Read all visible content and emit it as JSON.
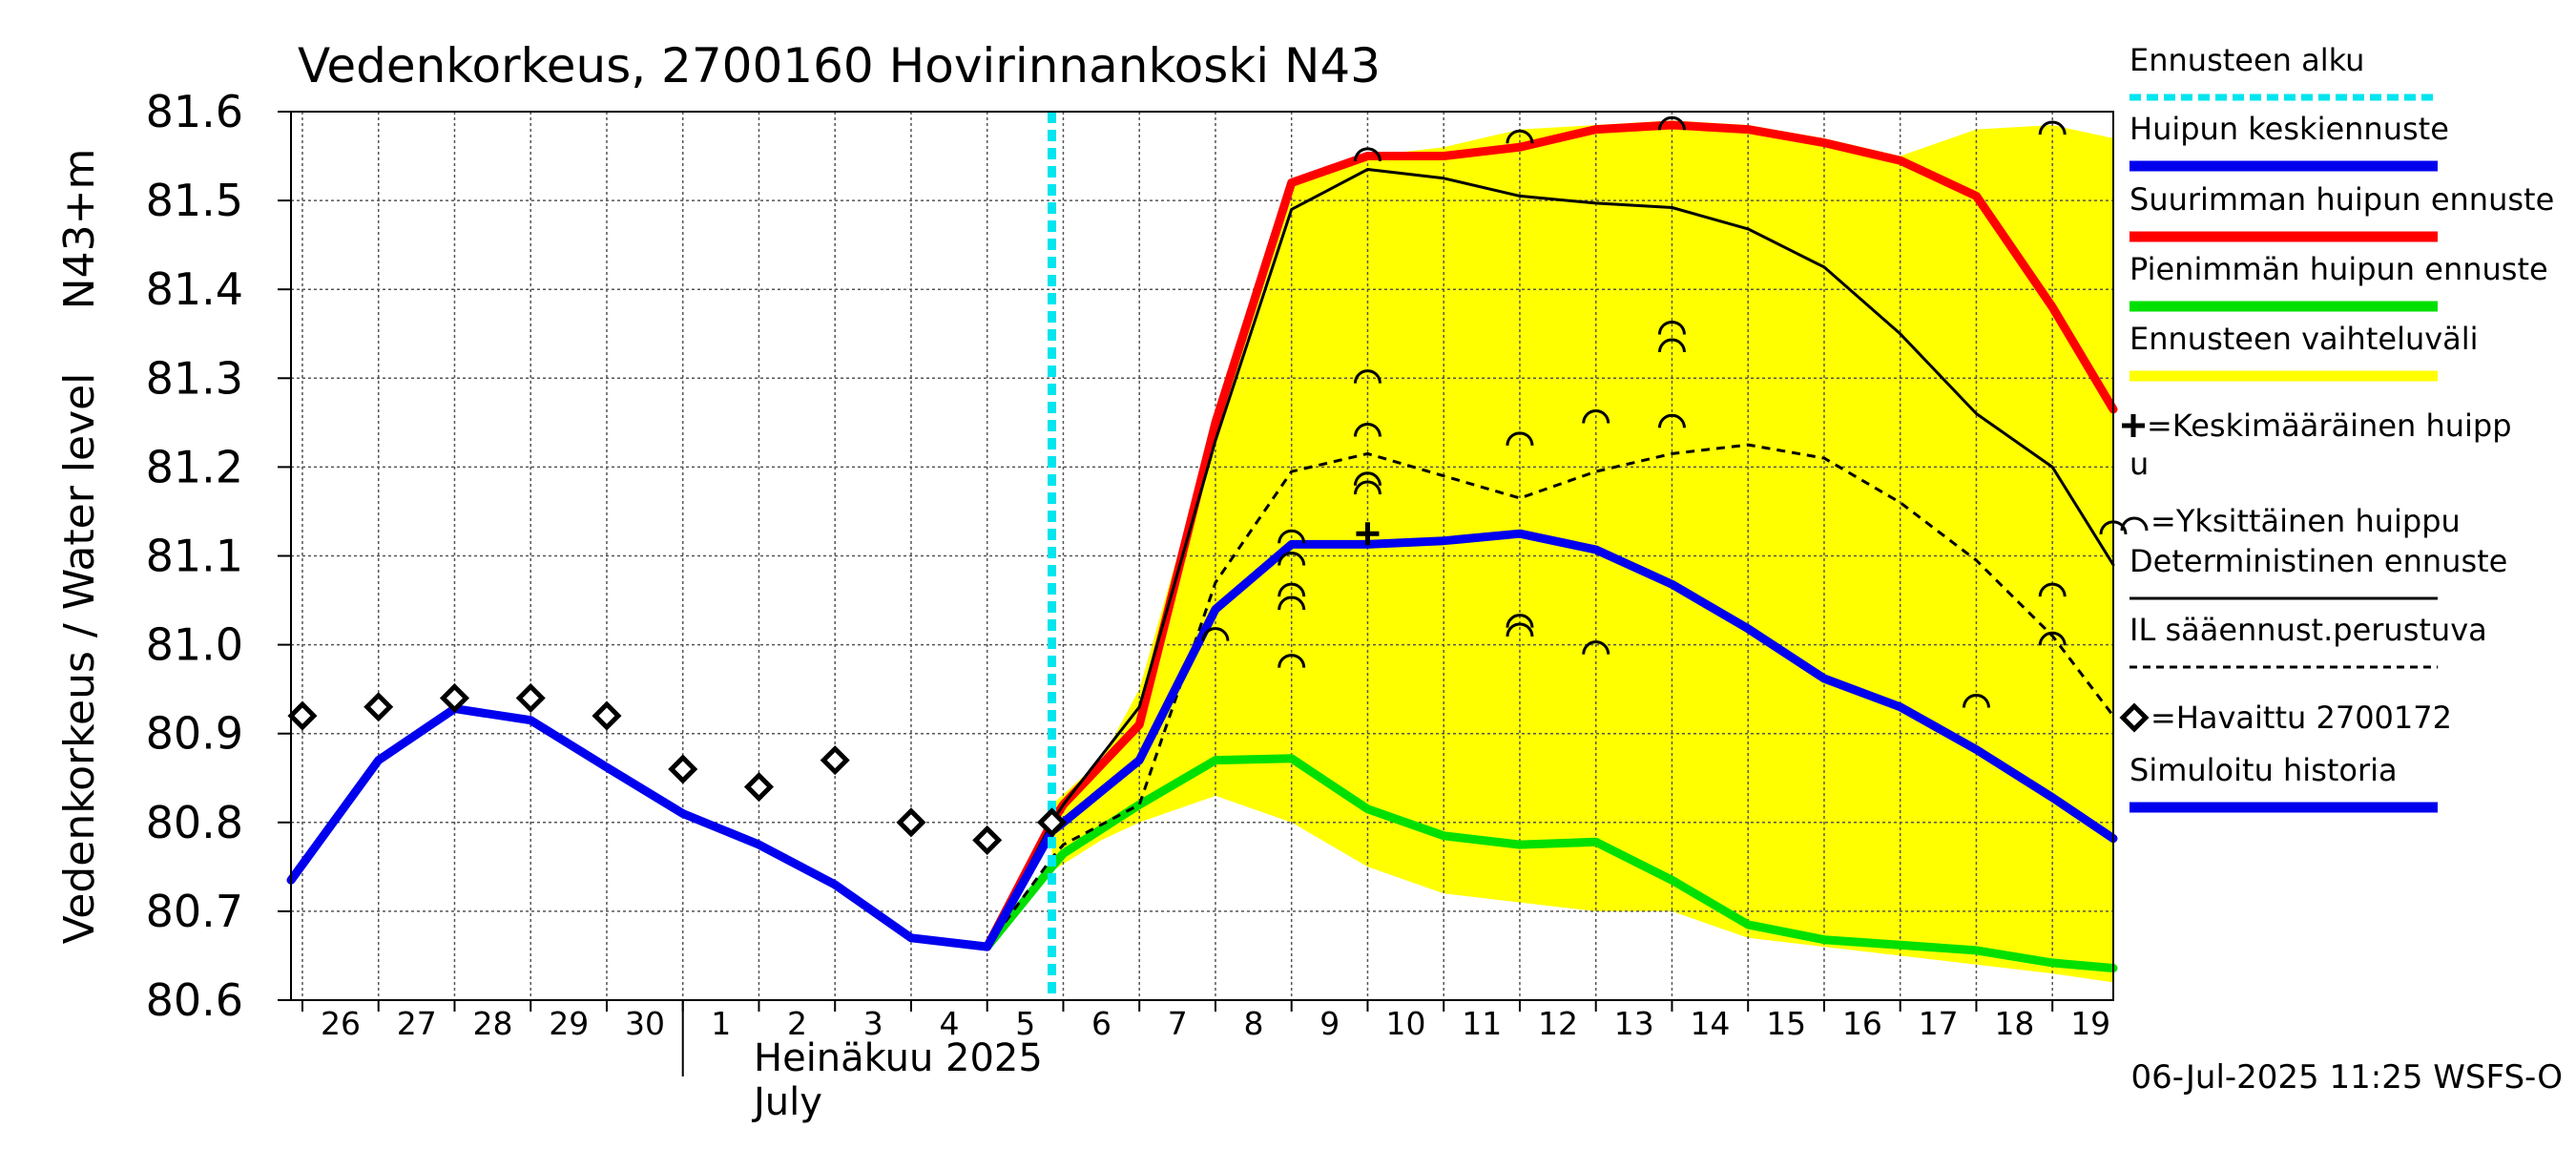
{
  "chart_data": {
    "type": "line",
    "title": "Vedenkorkeus, 2700160 Hovirinnankoski N43",
    "ylabel_outer": "Vedenkorkeus / Water level",
    "ylabel_inner": "N43+m",
    "ylim": [
      80.6,
      81.6
    ],
    "yticks": [
      "80.6",
      "80.7",
      "80.8",
      "80.9",
      "81.0",
      "81.1",
      "81.2",
      "81.3",
      "81.4",
      "81.5",
      "81.6"
    ],
    "xlim": [
      -0.15,
      23.8
    ],
    "x_day_labels": [
      {
        "x": 0.0,
        "label": "26"
      },
      {
        "x": 1.0,
        "label": "27"
      },
      {
        "x": 2.0,
        "label": "28"
      },
      {
        "x": 3.0,
        "label": "29"
      },
      {
        "x": 4.0,
        "label": "30"
      },
      {
        "x": 5.0,
        "label": "1"
      },
      {
        "x": 6.0,
        "label": "2"
      },
      {
        "x": 7.0,
        "label": "3"
      },
      {
        "x": 8.0,
        "label": "4"
      },
      {
        "x": 9.0,
        "label": "5"
      },
      {
        "x": 10.0,
        "label": "6"
      },
      {
        "x": 11.0,
        "label": "7"
      },
      {
        "x": 12.0,
        "label": "8"
      },
      {
        "x": 13.0,
        "label": "9"
      },
      {
        "x": 14.0,
        "label": "10"
      },
      {
        "x": 15.0,
        "label": "11"
      },
      {
        "x": 16.0,
        "label": "12"
      },
      {
        "x": 17.0,
        "label": "13"
      },
      {
        "x": 18.0,
        "label": "14"
      },
      {
        "x": 19.0,
        "label": "15"
      },
      {
        "x": 20.0,
        "label": "16"
      },
      {
        "x": 21.0,
        "label": "17"
      },
      {
        "x": 22.0,
        "label": "18"
      },
      {
        "x": 23.0,
        "label": "19"
      }
    ],
    "month_label_fi": "Heinäkuu  2025",
    "month_label_en": "July",
    "forecast_start_x": 9.85,
    "series": [
      {
        "name": "Ennusteen vaihteluväli",
        "kind": "band",
        "color": "#ffff00",
        "upper": [
          [
            9.85,
            80.82
          ],
          [
            10.5,
            80.87
          ],
          [
            11.0,
            80.95
          ],
          [
            11.5,
            81.1
          ],
          [
            12.0,
            81.25
          ],
          [
            13.0,
            81.52
          ],
          [
            14.0,
            81.55
          ],
          [
            15.0,
            81.56
          ],
          [
            16.0,
            81.58
          ],
          [
            17.0,
            81.585
          ],
          [
            18.0,
            81.59
          ],
          [
            19.0,
            81.585
          ],
          [
            20.0,
            81.57
          ],
          [
            21.0,
            81.55
          ],
          [
            22.0,
            81.58
          ],
          [
            23.0,
            81.585
          ],
          [
            23.8,
            81.57
          ]
        ],
        "lower": [
          [
            23.8,
            80.62
          ],
          [
            23.0,
            80.63
          ],
          [
            22.0,
            80.64
          ],
          [
            21.0,
            80.65
          ],
          [
            20.0,
            80.66
          ],
          [
            19.0,
            80.67
          ],
          [
            18.0,
            80.7
          ],
          [
            17.0,
            80.7
          ],
          [
            16.0,
            80.71
          ],
          [
            15.0,
            80.72
          ],
          [
            14.0,
            80.75
          ],
          [
            13.0,
            80.8
          ],
          [
            12.0,
            80.83
          ],
          [
            11.0,
            80.8
          ],
          [
            10.5,
            80.78
          ],
          [
            9.85,
            80.745
          ]
        ]
      },
      {
        "name": "Suurimman huipun ennuste",
        "kind": "line",
        "color": "#ff0000",
        "width": 9,
        "points": [
          [
            9.0,
            80.66
          ],
          [
            9.85,
            80.8
          ],
          [
            10.0,
            80.82
          ],
          [
            11.0,
            80.91
          ],
          [
            12.0,
            81.25
          ],
          [
            13.0,
            81.52
          ],
          [
            14.0,
            81.55
          ],
          [
            15.0,
            81.55
          ],
          [
            16.0,
            81.56
          ],
          [
            17.0,
            81.58
          ],
          [
            18.0,
            81.585
          ],
          [
            19.0,
            81.58
          ],
          [
            20.0,
            81.565
          ],
          [
            21.0,
            81.545
          ],
          [
            22.0,
            81.505
          ],
          [
            23.0,
            81.38
          ],
          [
            23.8,
            81.265
          ]
        ]
      },
      {
        "name": "Pienimmän huipun ennuste",
        "kind": "line",
        "color": "#00e000",
        "width": 9,
        "points": [
          [
            9.0,
            80.66
          ],
          [
            9.85,
            80.75
          ],
          [
            10.0,
            80.765
          ],
          [
            11.0,
            80.82
          ],
          [
            12.0,
            80.87
          ],
          [
            13.0,
            80.872
          ],
          [
            14.0,
            80.815
          ],
          [
            15.0,
            80.785
          ],
          [
            16.0,
            80.775
          ],
          [
            17.0,
            80.778
          ],
          [
            18.0,
            80.735
          ],
          [
            19.0,
            80.685
          ],
          [
            20.0,
            80.668
          ],
          [
            21.0,
            80.662
          ],
          [
            22.0,
            80.656
          ],
          [
            23.0,
            80.642
          ],
          [
            23.8,
            80.636
          ]
        ]
      },
      {
        "name": "Deterministinen ennuste",
        "kind": "line",
        "color": "#000000",
        "width": 3,
        "points": [
          [
            9.0,
            80.66
          ],
          [
            9.85,
            80.8
          ],
          [
            10.0,
            80.82
          ],
          [
            11.0,
            80.93
          ],
          [
            12.0,
            81.23
          ],
          [
            13.0,
            81.49
          ],
          [
            14.0,
            81.535
          ],
          [
            15.0,
            81.525
          ],
          [
            16.0,
            81.505
          ],
          [
            17.0,
            81.497
          ],
          [
            18.0,
            81.492
          ],
          [
            19.0,
            81.468
          ],
          [
            20.0,
            81.425
          ],
          [
            21.0,
            81.35
          ],
          [
            22.0,
            81.26
          ],
          [
            23.0,
            81.2
          ],
          [
            23.8,
            81.09
          ]
        ]
      },
      {
        "name": "IL sääennust.perustuva",
        "kind": "line",
        "color": "#000000",
        "width": 3,
        "dash": "9,7",
        "points": [
          [
            9.0,
            80.66
          ],
          [
            9.85,
            80.76
          ],
          [
            10.0,
            80.775
          ],
          [
            11.0,
            80.82
          ],
          [
            12.0,
            81.07
          ],
          [
            13.0,
            81.195
          ],
          [
            14.0,
            81.215
          ],
          [
            15.0,
            81.19
          ],
          [
            16.0,
            81.165
          ],
          [
            17.0,
            81.195
          ],
          [
            18.0,
            81.215
          ],
          [
            19.0,
            81.225
          ],
          [
            20.0,
            81.21
          ],
          [
            21.0,
            81.16
          ],
          [
            22.0,
            81.095
          ],
          [
            23.0,
            81.01
          ],
          [
            23.8,
            80.92
          ]
        ]
      },
      {
        "name": "Simuloitu historia",
        "kind": "line",
        "color": "#0000ee",
        "width": 9,
        "points": [
          [
            -0.15,
            80.735
          ],
          [
            1.0,
            80.87
          ],
          [
            2.0,
            80.928
          ],
          [
            3.0,
            80.915
          ],
          [
            4.0,
            80.862
          ],
          [
            5.0,
            80.81
          ],
          [
            6.0,
            80.775
          ],
          [
            7.0,
            80.73
          ],
          [
            8.0,
            80.67
          ],
          [
            9.0,
            80.66
          ],
          [
            9.85,
            80.79
          ]
        ]
      },
      {
        "name": "Huipun keskiennuste",
        "kind": "line",
        "color": "#0000ee",
        "width": 9,
        "points": [
          [
            9.85,
            80.79
          ],
          [
            10.0,
            80.8
          ],
          [
            11.0,
            80.87
          ],
          [
            12.0,
            81.04
          ],
          [
            13.0,
            81.113
          ],
          [
            14.0,
            81.113
          ],
          [
            15.0,
            81.117
          ],
          [
            16.0,
            81.125
          ],
          [
            17.0,
            81.107
          ],
          [
            18.0,
            81.068
          ],
          [
            19.0,
            81.018
          ],
          [
            20.0,
            80.962
          ],
          [
            21.0,
            80.93
          ],
          [
            22.0,
            80.882
          ],
          [
            23.0,
            80.828
          ],
          [
            23.8,
            80.782
          ]
        ]
      },
      {
        "name": "=Havaittu 2700172",
        "kind": "markers",
        "marker": "diamond",
        "points": [
          [
            0.0,
            80.92
          ],
          [
            1.0,
            80.93
          ],
          [
            2.0,
            80.94
          ],
          [
            3.0,
            80.94
          ],
          [
            4.0,
            80.92
          ],
          [
            5.0,
            80.86
          ],
          [
            6.0,
            80.84
          ],
          [
            7.0,
            80.87
          ],
          [
            8.0,
            80.8
          ],
          [
            9.0,
            80.78
          ],
          [
            9.85,
            80.8
          ]
        ]
      },
      {
        "name": "=Yksittäinen huippu",
        "kind": "markers",
        "marker": "arc",
        "points": [
          [
            12.0,
            81.015
          ],
          [
            13.0,
            81.125
          ],
          [
            13.0,
            81.1
          ],
          [
            13.0,
            81.065
          ],
          [
            13.0,
            81.05
          ],
          [
            13.0,
            80.985
          ],
          [
            14.0,
            81.555
          ],
          [
            14.0,
            81.305
          ],
          [
            14.0,
            81.245
          ],
          [
            14.0,
            81.19
          ],
          [
            14.0,
            81.18
          ],
          [
            16.0,
            81.575
          ],
          [
            16.0,
            81.235
          ],
          [
            16.0,
            81.03
          ],
          [
            16.0,
            81.02
          ],
          [
            17.0,
            81.26
          ],
          [
            17.0,
            81.0
          ],
          [
            18.0,
            81.59
          ],
          [
            18.0,
            81.36
          ],
          [
            18.0,
            81.34
          ],
          [
            18.0,
            81.255
          ],
          [
            22.0,
            80.94
          ],
          [
            23.0,
            81.585
          ],
          [
            23.0,
            81.065
          ],
          [
            23.0,
            81.01
          ],
          [
            23.8,
            81.135
          ]
        ]
      },
      {
        "name": "=Keskimääräinen huippu",
        "kind": "markers",
        "marker": "plus",
        "points": [
          [
            14.0,
            81.125
          ]
        ]
      }
    ],
    "legend": [
      {
        "label": "Ennusteen alku",
        "style": "dotted",
        "color": "#00e5ee"
      },
      {
        "label": "Huipun keskiennuste",
        "style": "thick",
        "color": "#0000ee"
      },
      {
        "label": "Suurimman huipun ennuste",
        "style": "thick",
        "color": "#ff0000"
      },
      {
        "label": "Pienimmän huipun ennuste",
        "style": "thick",
        "color": "#00e000"
      },
      {
        "label": "Ennusteen vaihteluväli",
        "style": "thick",
        "color": "#ffff00"
      },
      {
        "label": "=Keskimääräinen huipp",
        "label2": "u",
        "style": "plus-marker",
        "color": "#000000"
      },
      {
        "label": "=Yksittäinen huippu",
        "style": "arc-marker",
        "color": "#000000"
      },
      {
        "label": "Deterministinen ennuste",
        "style": "thin",
        "color": "#000000"
      },
      {
        "label": "IL sääennust.perustuva",
        "style": "dashed",
        "color": "#000000"
      },
      {
        "label": "=Havaittu 2700172",
        "style": "diamond-marker",
        "color": "#000000"
      },
      {
        "label": "Simuloitu historia",
        "style": "thick",
        "color": "#0000ee"
      }
    ],
    "legend_placement": "right",
    "grid": true,
    "footer": "06-Jul-2025 11:25 WSFS-O"
  }
}
